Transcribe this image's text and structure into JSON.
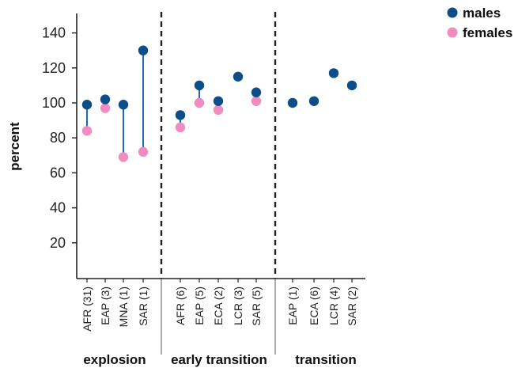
{
  "chart_data": {
    "type": "dot-range",
    "ylabel": "percent",
    "ylim": [
      0,
      140
    ],
    "yticks": [
      20,
      40,
      60,
      80,
      100,
      120,
      140
    ],
    "colors": {
      "males": "#0d4e8a",
      "females": "#f08cbf",
      "connector": "#1f6ab0"
    },
    "legend": {
      "placement": "top-right",
      "entries": [
        {
          "key": "males",
          "label": "males"
        },
        {
          "key": "females",
          "label": "females"
        }
      ]
    },
    "groups": [
      {
        "name": "explosion",
        "points": [
          {
            "label": "AFR (31)",
            "males": 99,
            "females": 84
          },
          {
            "label": "EAP (3)",
            "males": 102,
            "females": 97
          },
          {
            "label": "MNA (1)",
            "males": 99,
            "females": 69
          },
          {
            "label": "SAR (1)",
            "males": 130,
            "females": 72
          }
        ]
      },
      {
        "name": "early transition",
        "points": [
          {
            "label": "AFR (6)",
            "males": 93,
            "females": 86
          },
          {
            "label": "EAP (5)",
            "males": 110,
            "females": 100
          },
          {
            "label": "ECA (2)",
            "males": 101,
            "females": 96
          },
          {
            "label": "LCR (3)",
            "males": 115,
            "females": null
          },
          {
            "label": "SAR (5)",
            "males": 106,
            "females": 101
          }
        ]
      },
      {
        "name": "transition",
        "points": [
          {
            "label": "EAP (1)",
            "males": 100,
            "females": null
          },
          {
            "label": "ECA (6)",
            "males": 101,
            "females": null
          },
          {
            "label": "LCR (4)",
            "males": 117,
            "females": null
          },
          {
            "label": "SAR (2)",
            "males": 110,
            "females": null
          }
        ]
      }
    ]
  }
}
